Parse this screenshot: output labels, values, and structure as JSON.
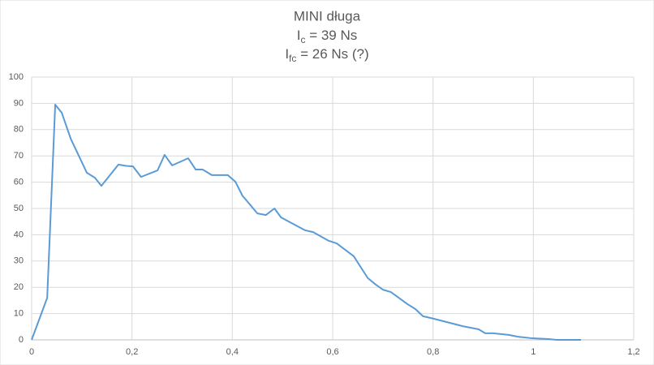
{
  "chart_data": {
    "type": "line",
    "title": "MINI długa",
    "subtitle_lines": [
      {
        "main": "I",
        "sub": "c",
        "rest": " = 39 Ns"
      },
      {
        "main": "I",
        "sub": "fc",
        "rest": " = 26 Ns (?)"
      }
    ],
    "x": [
      0,
      0.031,
      0.047,
      0.06,
      0.078,
      0.11,
      0.126,
      0.139,
      0.173,
      0.188,
      0.202,
      0.218,
      0.251,
      0.265,
      0.28,
      0.312,
      0.327,
      0.341,
      0.359,
      0.391,
      0.406,
      0.42,
      0.45,
      0.467,
      0.484,
      0.497,
      0.53,
      0.545,
      0.561,
      0.592,
      0.608,
      0.642,
      0.67,
      0.686,
      0.7,
      0.716,
      0.749,
      0.765,
      0.78,
      0.796,
      0.827,
      0.845,
      0.859,
      0.891,
      0.904,
      0.92,
      0.951,
      0.969,
      0.998,
      1.03,
      1.046,
      1.095
    ],
    "values": [
      0,
      16,
      89.5,
      86.4,
      76.5,
      63.6,
      61.7,
      58.6,
      66.7,
      66.2,
      66,
      62,
      64.5,
      70.4,
      66.4,
      69.1,
      64.8,
      64.8,
      62.7,
      62.7,
      60.2,
      54.9,
      48.1,
      47.5,
      50,
      46.6,
      43.2,
      41.7,
      41,
      37.7,
      36.7,
      31.8,
      23.5,
      21,
      19.1,
      18.2,
      13.6,
      11.7,
      9,
      8.3,
      6.8,
      5.9,
      5.2,
      4,
      2.5,
      2.5,
      1.9,
      1.2,
      0.6,
      0.3,
      0,
      0
    ],
    "color": "#5b9bd5",
    "xlim": [
      0,
      1.2
    ],
    "xticks": [
      0,
      {
        "value": 0.2,
        "label": "0,2"
      },
      {
        "value": 0.4,
        "label": "0,4"
      },
      {
        "value": 0.6,
        "label": "0,6"
      },
      {
        "value": 0.8,
        "label": "0,8"
      },
      1,
      {
        "value": 1.2,
        "label": "1,2"
      }
    ],
    "ylim": [
      0,
      100
    ],
    "yticks": [
      0,
      10,
      20,
      30,
      40,
      50,
      60,
      70,
      80,
      90,
      100
    ],
    "grid": true
  }
}
